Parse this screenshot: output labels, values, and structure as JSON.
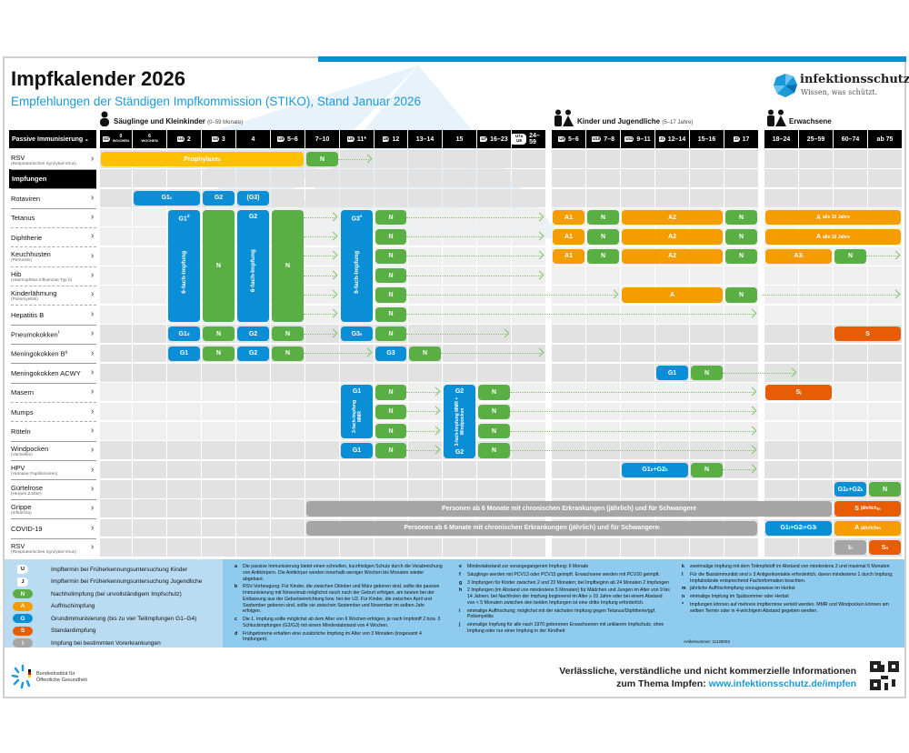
{
  "header": {
    "title": "Impfkalender 2026",
    "subtitle": "Empfehlungen der Ständigen Impfkommission (STIKO), Stand Januar 2026",
    "logo": "infektionsschutz.de",
    "logo_tagline": "Wissen, was schützt."
  },
  "sections": [
    {
      "label": "Säuglinge und Kleinkinder",
      "note": "(0–59 Monate)",
      "icon": "baby-icon"
    },
    {
      "label": "Kinder und Jugendliche",
      "note": "(5–17 Jahre)",
      "icon": "children-icon"
    },
    {
      "label": "Erwachsene",
      "note": "",
      "icon": "adults-icon"
    }
  ],
  "passive_header": "Passive Immunisierung",
  "passive_header_sup": "a",
  "columns": [
    {
      "badge": "U2",
      "age": "0",
      "unit": "Wochen"
    },
    {
      "badge": "",
      "age": "6",
      "unit": "Wochen"
    },
    {
      "badge": "U4",
      "age": "2"
    },
    {
      "badge": "U4",
      "age": "3"
    },
    {
      "badge": "",
      "age": "4"
    },
    {
      "badge": "U5",
      "age": "5–6"
    },
    {
      "badge": "",
      "age": "7–10"
    },
    {
      "badge": "U6",
      "age": "11*"
    },
    {
      "badge": "U6",
      "age": "12"
    },
    {
      "badge": "",
      "age": "13–14"
    },
    {
      "badge": "",
      "age": "15"
    },
    {
      "badge": "U7",
      "age": "16–23"
    },
    {
      "badge": "U7a U8",
      "age": "24–59"
    },
    {
      "badge": "U9",
      "age": "5–6"
    },
    {
      "badge": "U10",
      "age": "7–8"
    },
    {
      "badge": "U11",
      "age": "9–11"
    },
    {
      "badge": "J1",
      "age": "12–14"
    },
    {
      "badge": "",
      "age": "15–16"
    },
    {
      "badge": "J2",
      "age": "17"
    },
    {
      "badge": "",
      "age": "18–24"
    },
    {
      "badge": "",
      "age": "25–59"
    },
    {
      "badge": "",
      "age": "60–74"
    },
    {
      "badge": "",
      "age": "ab 75"
    }
  ],
  "rows": [
    {
      "name": "RSV",
      "sub": "(Respiratorisches Synzytial-Virus)"
    },
    {
      "name": "Impfungen",
      "heading": true
    },
    {
      "name": "Rotaviren"
    },
    {
      "name": "Tetanus"
    },
    {
      "name": "Diphtherie"
    },
    {
      "name": "Keuchhusten",
      "sub": "(Pertussis)"
    },
    {
      "name": "Hib",
      "sub": "(Haemophilus influenzae Typ b)"
    },
    {
      "name": "Kinderlähmung",
      "sub": "(Poliomyelitis)"
    },
    {
      "name": "Hepatitis B"
    },
    {
      "name": "Pneumokokken",
      "sup": "f"
    },
    {
      "name": "Meningokokken B",
      "sup": "g"
    },
    {
      "name": "Meningokokken ACWY"
    },
    {
      "name": "Masern"
    },
    {
      "name": "Mumps"
    },
    {
      "name": "Röteln"
    },
    {
      "name": "Windpocken",
      "sub": "(Varizellen)"
    },
    {
      "name": "HPV",
      "sub": "(Humane Papillomviren)"
    },
    {
      "name": "Gürtelrose",
      "sub": "(Herpes Zoster)"
    },
    {
      "name": "Grippe",
      "sub": "(Influenza)"
    },
    {
      "name": "COVID-19"
    },
    {
      "name": "RSV",
      "sub": "(Respiratorisches Synzytial-Virus)"
    }
  ],
  "colors": {
    "G": "#0a8fd6",
    "N": "#5aaf44",
    "A": "#f59c00",
    "S": "#e85d04",
    "I": "#a5a5a5",
    "P": "#ffc000"
  },
  "bars": [
    {
      "row": 0,
      "from": 0,
      "to": 5,
      "kind": "P",
      "label": "Prophylaxe",
      "sup": "b"
    },
    {
      "row": 0,
      "from": 6,
      "to": 6,
      "kind": "N",
      "label": "N"
    },
    {
      "row": 2,
      "from": 1,
      "to": 2,
      "kind": "G",
      "label": "G1",
      "sup": "c"
    },
    {
      "row": 2,
      "from": 3,
      "to": 3,
      "kind": "G",
      "label": "G2"
    },
    {
      "row": 2,
      "from": 4,
      "to": 4,
      "kind": "G",
      "label": "(G3)"
    },
    {
      "row": 3,
      "rows": 6,
      "from": 2,
      "to": 2,
      "kind": "G",
      "label": "G1",
      "sup": "d",
      "vertical": "6-fach-Impfung"
    },
    {
      "row": 3,
      "rows": 6,
      "from": 3,
      "to": 3,
      "kind": "N",
      "label": "N"
    },
    {
      "row": 3,
      "rows": 6,
      "from": 4,
      "to": 4,
      "kind": "G",
      "label": "G2",
      "vertical": "6-fach-Impfung"
    },
    {
      "row": 3,
      "rows": 6,
      "from": 5,
      "to": 5,
      "kind": "N",
      "label": "N"
    },
    {
      "row": 3,
      "rows": 6,
      "from": 7,
      "to": 7,
      "kind": "G",
      "label": "G3",
      "sup": "e",
      "vertical": "6-fach-Impfung"
    },
    {
      "row": 3,
      "from": 8,
      "to": 8,
      "kind": "N",
      "label": "N"
    },
    {
      "row": 4,
      "from": 8,
      "to": 8,
      "kind": "N",
      "label": "N"
    },
    {
      "row": 5,
      "from": 8,
      "to": 8,
      "kind": "N",
      "label": "N"
    },
    {
      "row": 6,
      "from": 8,
      "to": 8,
      "kind": "N",
      "label": "N"
    },
    {
      "row": 7,
      "from": 8,
      "to": 8,
      "kind": "N",
      "label": "N"
    },
    {
      "row": 8,
      "from": 8,
      "to": 8,
      "kind": "N",
      "label": "N"
    },
    {
      "row": 3,
      "from": 13,
      "to": 13,
      "kind": "A",
      "label": "A1"
    },
    {
      "row": 3,
      "from": 14,
      "to": 14,
      "kind": "N",
      "label": "N"
    },
    {
      "row": 3,
      "from": 15,
      "to": 17,
      "kind": "A",
      "label": "A2"
    },
    {
      "row": 3,
      "from": 18,
      "to": 18,
      "kind": "N",
      "label": "N"
    },
    {
      "row": 3,
      "from": 19,
      "to": 22,
      "kind": "A",
      "label": "A",
      "small": "alle 10 Jahre"
    },
    {
      "row": 4,
      "from": 13,
      "to": 13,
      "kind": "A",
      "label": "A1"
    },
    {
      "row": 4,
      "from": 14,
      "to": 14,
      "kind": "N",
      "label": "N"
    },
    {
      "row": 4,
      "from": 15,
      "to": 17,
      "kind": "A",
      "label": "A2"
    },
    {
      "row": 4,
      "from": 18,
      "to": 18,
      "kind": "N",
      "label": "N"
    },
    {
      "row": 4,
      "from": 19,
      "to": 22,
      "kind": "A",
      "label": "A",
      "small": "alle 10 Jahre"
    },
    {
      "row": 5,
      "from": 13,
      "to": 13,
      "kind": "A",
      "label": "A1"
    },
    {
      "row": 5,
      "from": 14,
      "to": 14,
      "kind": "N",
      "label": "N"
    },
    {
      "row": 5,
      "from": 15,
      "to": 17,
      "kind": "A",
      "label": "A2"
    },
    {
      "row": 5,
      "from": 18,
      "to": 18,
      "kind": "N",
      "label": "N"
    },
    {
      "row": 5,
      "from": 19,
      "to": 20,
      "kind": "A",
      "label": "A3",
      "sup": "i"
    },
    {
      "row": 5,
      "from": 21,
      "to": 21,
      "kind": "N",
      "label": "N"
    },
    {
      "row": 7,
      "from": 15,
      "to": 17,
      "kind": "A",
      "label": "A"
    },
    {
      "row": 7,
      "from": 18,
      "to": 18,
      "kind": "N",
      "label": "N"
    },
    {
      "row": 9,
      "from": 2,
      "to": 2,
      "kind": "G",
      "label": "G1",
      "sup": "d"
    },
    {
      "row": 9,
      "from": 3,
      "to": 3,
      "kind": "N",
      "label": "N"
    },
    {
      "row": 9,
      "from": 4,
      "to": 4,
      "kind": "G",
      "label": "G2"
    },
    {
      "row": 9,
      "from": 5,
      "to": 5,
      "kind": "N",
      "label": "N"
    },
    {
      "row": 9,
      "from": 7,
      "to": 7,
      "kind": "G",
      "label": "G3",
      "sup": "e"
    },
    {
      "row": 9,
      "from": 8,
      "to": 8,
      "kind": "N",
      "label": "N"
    },
    {
      "row": 9,
      "from": 21,
      "to": 22,
      "kind": "S",
      "label": "S"
    },
    {
      "row": 10,
      "from": 2,
      "to": 2,
      "kind": "G",
      "label": "G1"
    },
    {
      "row": 10,
      "from": 3,
      "to": 3,
      "kind": "N",
      "label": "N"
    },
    {
      "row": 10,
      "from": 4,
      "to": 4,
      "kind": "G",
      "label": "G2"
    },
    {
      "row": 10,
      "from": 5,
      "to": 5,
      "kind": "N",
      "label": "N"
    },
    {
      "row": 10,
      "from": 8,
      "to": 8,
      "kind": "G",
      "label": "G3"
    },
    {
      "row": 10,
      "from": 9,
      "to": 9,
      "kind": "N",
      "label": "N"
    },
    {
      "row": 11,
      "from": 16,
      "to": 16,
      "kind": "G",
      "label": "G1"
    },
    {
      "row": 11,
      "from": 17,
      "to": 17,
      "kind": "N",
      "label": "N"
    },
    {
      "row": 12,
      "rows": 3,
      "from": 7,
      "to": 7,
      "kind": "G",
      "label": "G1",
      "vertical": "3-fach-Impfung MMR"
    },
    {
      "row": 12,
      "from": 8,
      "to": 8,
      "kind": "N",
      "label": "N"
    },
    {
      "row": 13,
      "from": 8,
      "to": 8,
      "kind": "N",
      "label": "N"
    },
    {
      "row": 14,
      "from": 8,
      "to": 8,
      "kind": "N",
      "label": "N"
    },
    {
      "row": 12,
      "rows": 4,
      "from": 10,
      "to": 10,
      "kind": "G",
      "label": "G2",
      "vertical": "3-fach-Impfung MMR + Windpocken",
      "bottom": "G2"
    },
    {
      "row": 12,
      "from": 11,
      "to": 11,
      "kind": "N",
      "label": "N"
    },
    {
      "row": 13,
      "from": 11,
      "to": 11,
      "kind": "N",
      "label": "N"
    },
    {
      "row": 14,
      "from": 11,
      "to": 11,
      "kind": "N",
      "label": "N"
    },
    {
      "row": 15,
      "from": 11,
      "to": 11,
      "kind": "N",
      "label": "N"
    },
    {
      "row": 12,
      "from": 19,
      "to": 20,
      "kind": "S",
      "label": "S",
      "sup": "j"
    },
    {
      "row": 15,
      "from": 7,
      "to": 7,
      "kind": "G",
      "label": "G1"
    },
    {
      "row": 15,
      "from": 8,
      "to": 8,
      "kind": "N",
      "label": "N"
    },
    {
      "row": 16,
      "from": 15,
      "to": 16,
      "kind": "G",
      "label": "G1",
      "sup": "h",
      "label2": "+G2",
      "sup2": "h"
    },
    {
      "row": 16,
      "from": 17,
      "to": 17,
      "kind": "N",
      "label": "N"
    },
    {
      "row": 17,
      "from": 21,
      "to": 21,
      "kind": "G",
      "label": "G1",
      "sup": "k",
      "label2": "+G2",
      "sup2": "k"
    },
    {
      "row": 17,
      "from": 22,
      "to": 22,
      "kind": "N",
      "label": "N"
    },
    {
      "row": 18,
      "from": 6,
      "to": 20,
      "kind": "I",
      "label": "Personen ab 6 Monate mit chronischen Erkrankungen (jährlich) und für Schwangere"
    },
    {
      "row": 18,
      "from": 21,
      "to": 22,
      "kind": "S",
      "label": "S",
      "small": "jährlich",
      "sup2": "m"
    },
    {
      "row": 19,
      "from": 6,
      "to": 18,
      "kind": "I",
      "label": "Personen ab 6 Monate mit chronischen Erkrankungen (jährlich) und für Schwangere",
      "sup": "l"
    },
    {
      "row": 19,
      "from": 19,
      "to": 20,
      "kind": "G",
      "label": "G1",
      "sup": "l",
      "label2": "+G2",
      "sup2": "l",
      "label3": "+G3",
      "sup3": "l"
    },
    {
      "row": 19,
      "from": 21,
      "to": 22,
      "kind": "A",
      "label": "A",
      "small": "jährlich",
      "sup2": "m"
    },
    {
      "row": 20,
      "from": 21,
      "to": 21,
      "kind": "I",
      "label": "I",
      "sup": "n"
    },
    {
      "row": 20,
      "from": 22,
      "to": 22,
      "kind": "S",
      "label": "S",
      "sup": "n"
    }
  ],
  "arrows": [
    {
      "row": 0,
      "from": 7,
      "to": 7
    },
    {
      "row": 3,
      "from": 6,
      "to": 6
    },
    {
      "row": 4,
      "from": 6,
      "to": 6
    },
    {
      "row": 5,
      "from": 6,
      "to": 6
    },
    {
      "row": 6,
      "from": 6,
      "to": 6
    },
    {
      "row": 7,
      "from": 6,
      "to": 6
    },
    {
      "row": 8,
      "from": 6,
      "to": 6
    },
    {
      "row": 3,
      "from": 9,
      "to": 12
    },
    {
      "row": 4,
      "from": 9,
      "to": 12
    },
    {
      "row": 5,
      "from": 9,
      "to": 12
    },
    {
      "row": 6,
      "from": 9,
      "to": 12
    },
    {
      "row": 7,
      "from": 9,
      "to": 14
    },
    {
      "row": 7,
      "from": 19,
      "to": 22
    },
    {
      "row": 8,
      "from": 9,
      "to": 18
    },
    {
      "row": 5,
      "from": 22,
      "to": 22
    },
    {
      "row": 9,
      "from": 6,
      "to": 6
    },
    {
      "row": 9,
      "from": 9,
      "to": 11
    },
    {
      "row": 10,
      "from": 6,
      "to": 7
    },
    {
      "row": 10,
      "from": 10,
      "to": 12
    },
    {
      "row": 11,
      "from": 18,
      "to": 19
    },
    {
      "row": 12,
      "from": 9,
      "to": 9
    },
    {
      "row": 13,
      "from": 9,
      "to": 9
    },
    {
      "row": 14,
      "from": 9,
      "to": 9
    },
    {
      "row": 15,
      "from": 9,
      "to": 9
    },
    {
      "row": 12,
      "from": 12,
      "to": 18
    },
    {
      "row": 13,
      "from": 12,
      "to": 18
    },
    {
      "row": 14,
      "from": 12,
      "to": 18
    },
    {
      "row": 15,
      "from": 12,
      "to": 18
    },
    {
      "row": 16,
      "from": 18,
      "to": 18
    }
  ],
  "legend": [
    {
      "badge": "U",
      "kind": "U",
      "text": "Impftermin bei Früherkennungsuntersuchung Kinder"
    },
    {
      "badge": "J",
      "kind": "U",
      "text": "Impftermin bei Früherkennungsuntersuchung Jugendliche"
    },
    {
      "badge": "N",
      "kind": "N",
      "text": "Nachholimpfung (bei unvollständigem Impfschutz)"
    },
    {
      "badge": "A",
      "kind": "A",
      "text": "Auffrischimpfung"
    },
    {
      "badge": "G",
      "kind": "G",
      "text": "Grundimmunisierung (bis zu vier Teilimpfungen G1–G4)"
    },
    {
      "badge": "S",
      "kind": "S",
      "text": "Standardimpfung"
    },
    {
      "badge": "I",
      "kind": "I",
      "text": "Impfung bei bestimmten Vorerkrankungen"
    }
  ],
  "footnotes": [
    [
      {
        "k": "a",
        "t": "Die passive Immunisierung bietet einen schnellen, kurzfristigen Schutz durch die Verabreichung von Antikörpern. Die Antikörper werden innerhalb weniger Wochen bis Monaten wieder abgebaut."
      },
      {
        "k": "b",
        "t": "RSV-Vorbeugung: Für Kinder, die zwischen Oktober und März geboren sind, sollte die passive Immunisierung mit Nirsevimab möglichst rasch nach der Geburt erfolgen, am besten bei der Entlassung aus der Geburtseinrichtung bzw. bei der U2. Für Kinder, die zwischen April und September geboren sind, sollte sie zwischen September und November im selben Jahr erfolgen."
      },
      {
        "k": "c",
        "t": "Die 1. Impfung sollte möglichst ab dem Alter von 6 Wochen erfolgen; je nach Impfstoff 2 bzw. 3 Schluckimpfungen (G2/G3) mit einem Mindestabstand von 4 Wochen."
      },
      {
        "k": "d",
        "t": "Frühgeborene erhalten eine zusätzliche Impfung im Alter von 3 Monaten (insgesamt 4 Impfungen)."
      }
    ],
    [
      {
        "k": "e",
        "t": "Mindestabstand zur vorangegangenen Impfung: 6 Monate"
      },
      {
        "k": "f",
        "t": "Säuglinge werden mit PCV13 oder PCV15 geimpft. Erwachsene werden mit PCV20 geimpft."
      },
      {
        "k": "g",
        "t": "3 Impfungen für Kinder zwischen 2 und 23 Monaten; bei Impfbeginn ab 24 Monaten 2 Impfungen"
      },
      {
        "k": "h",
        "t": "2 Impfungen (im Abstand von mindestens 5 Monaten) für Mädchen und Jungen im Alter von 9 bis 14 Jahren; bei Nachholen der Impfung beginnend im Alter ≥ 15 Jahre oder bei einem Abstand von < 5 Monaten zwischen den beiden Impfungen ist eine dritte Impfung erforderlich."
      },
      {
        "k": "i",
        "t": "einmalige Auffrischung; möglichst mit der nächsten Impfung gegen Tetanus/Diphtherie/ggf. Poliomyelitis"
      },
      {
        "k": "j",
        "t": "einmalige Impfung für alle nach 1970 geborenen Erwachsenen mit unklarem Impfschutz, ohne Impfung oder nur einer Impfung in der Kindheit"
      }
    ],
    [
      {
        "k": "k",
        "t": "zweimalige Impfung mit dem Totimpfstoff im Abstand von mindestens 2 und maximal 6 Monaten"
      },
      {
        "k": "l",
        "t": "Für die Basisimmunität sind ≥ 3 Antigenkontakte erforderlich, davon mindestens 1 durch Impfung; Impfabstände entsprechend Fachinformation beachten."
      },
      {
        "k": "m",
        "t": "jährliche Auffrischimpfung vorzugsweise im Herbst"
      },
      {
        "k": "n",
        "t": "einmalige Impfung im Spätsommer oder Herbst"
      },
      {
        "k": "*",
        "t": "Impfungen können auf mehrere Impftermine verteilt werden. MMR und Windpocken können am selben Termin oder in 4-wöchigem Abstand gegeben werden."
      }
    ]
  ],
  "article_number": "Artikelnummer: 11128003",
  "footer": {
    "org": "Bundesinstitut für Öffentliche Gesundheit",
    "tagline1": "Verlässliche, verständliche und nicht kommerzielle Informationen",
    "tagline2_prefix": "zum Thema Impfen: ",
    "link": "www.infektionsschutz.de/impfen"
  }
}
